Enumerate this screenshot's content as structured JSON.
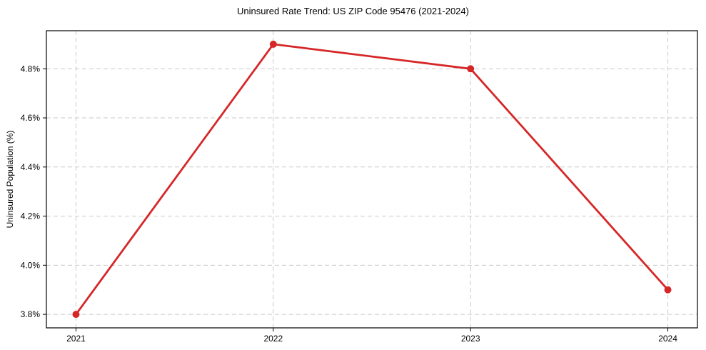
{
  "chart_data": {
    "type": "line",
    "title": "Uninsured Rate Trend: US ZIP Code 95476 (2021-2024)",
    "xlabel": "",
    "ylabel": "Uninsured Population (%)",
    "x": [
      2021,
      2022,
      2023,
      2024
    ],
    "series": [
      {
        "name": "Uninsured rate",
        "values": [
          3.8,
          4.9,
          4.8,
          3.9
        ]
      }
    ],
    "xticks": {
      "values": [
        2021,
        2022,
        2023,
        2024
      ],
      "labels": [
        "2021",
        "2022",
        "2023",
        "2024"
      ]
    },
    "yticks": {
      "values": [
        3.8,
        4.0,
        4.2,
        4.4,
        4.6,
        4.8
      ],
      "labels": [
        "3.8%",
        "4.0%",
        "4.2%",
        "4.4%",
        "4.6%",
        "4.8%"
      ]
    },
    "xlim": [
      2020.85,
      2024.15
    ],
    "ylim": [
      3.745,
      4.955
    ],
    "grid": "dashed",
    "legend": "none",
    "colors": {
      "line": "#d62728",
      "marker": "#d62728",
      "grid": "#c9c9c9",
      "axis": "#000000",
      "text": "#000000",
      "background": "#ffffff"
    }
  }
}
